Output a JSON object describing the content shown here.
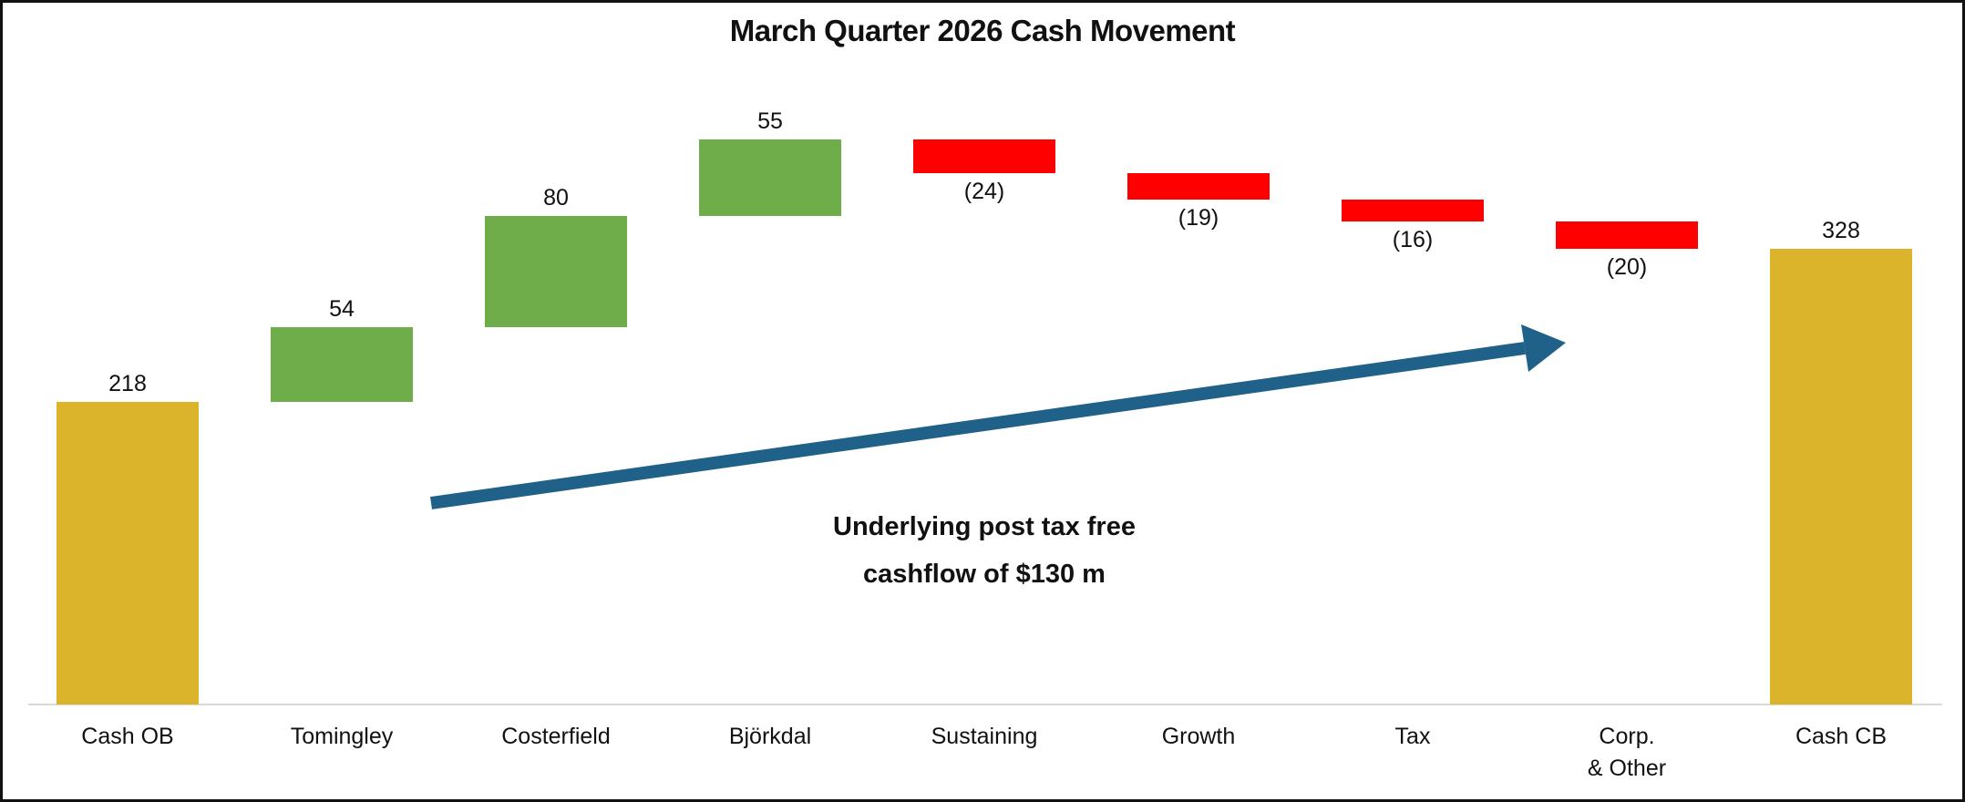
{
  "chart_data": {
    "type": "waterfall",
    "title": "March Quarter 2026 Cash Movement",
    "categories": [
      "Cash OB",
      "Tomingley",
      "Costerfield",
      "Björkdal",
      "Sustaining",
      "Growth",
      "Tax",
      "Corp.\n& Other",
      "Cash CB"
    ],
    "values": [
      218,
      54,
      80,
      55,
      -24,
      -19,
      -16,
      -20,
      328
    ],
    "bar_roles": [
      "total",
      "increase",
      "increase",
      "increase",
      "decrease",
      "decrease",
      "decrease",
      "decrease",
      "total"
    ],
    "value_labels": [
      "218",
      "54",
      "80",
      "55",
      "(24)",
      "(19)",
      "(16)",
      "(20)",
      "328"
    ],
    "cumulative": [
      218,
      272,
      352,
      407,
      383,
      364,
      348,
      328,
      328
    ],
    "colors": {
      "total": "#DCB42C",
      "increase": "#6FAD4A",
      "decrease": "#FF0000",
      "arrow": "#1F6188",
      "gridline": "#D9D9D9",
      "text": "#111111"
    },
    "ylim": [
      0,
      480
    ],
    "grid": "baseline-only",
    "legend": "none",
    "xlabel": "",
    "ylabel": "",
    "annotation": {
      "line1": "Underlying post tax free",
      "line2": "cashflow of $130 m"
    }
  }
}
